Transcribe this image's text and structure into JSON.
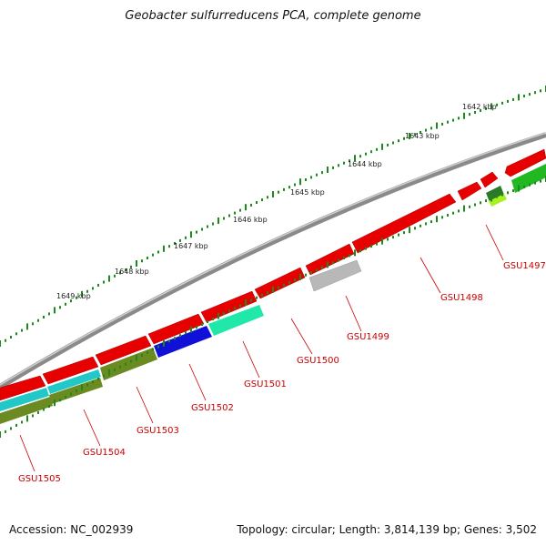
{
  "title": "Geobacter sulfurreducens PCA, complete genome",
  "footer": {
    "accession": "Accession: NC_002939",
    "summary": "Topology: circular; Length: 3,814,139 bp; Genes: 3,502"
  },
  "kbp_labels": [
    "1642 kbp",
    "1643 kbp",
    "1644 kbp",
    "1645 kbp",
    "1646 kbp",
    "1647 kbp",
    "1648 kbp",
    "1649 kbp"
  ],
  "gene_labels": [
    "GSU1497",
    "GSU1498",
    "GSU1499",
    "GSU1500",
    "GSU1501",
    "GSU1502",
    "GSU1503",
    "GSU1504",
    "GSU1505"
  ],
  "colors": {
    "backbone": "#8a8a8a",
    "red": "#e60000",
    "cyan": "#22c8c8",
    "olive": "#6b8a22",
    "blue": "#1010d8",
    "aqua": "#20e8a8",
    "gray": "#b8b8b8",
    "green": "#22b822",
    "lime": "#a8f020",
    "darkgreen": "#2a7a2a",
    "label": "#cc0000",
    "tick": "#1a8a1a"
  }
}
